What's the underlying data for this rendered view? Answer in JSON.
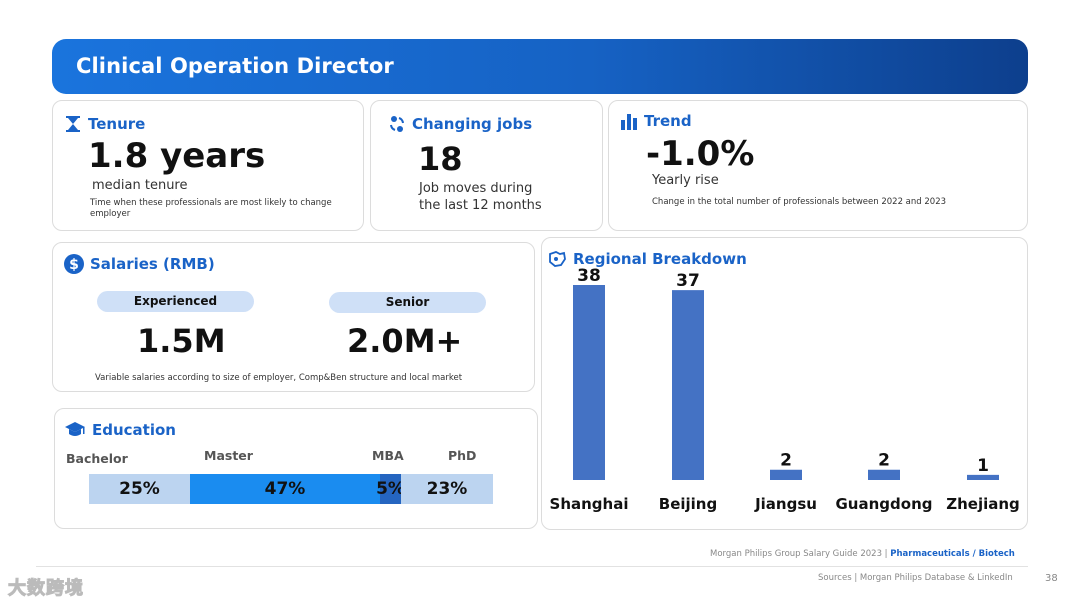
{
  "title": "Clinical Operation Director",
  "tenure": {
    "heading": "Tenure",
    "value": "1.8 years",
    "label": "median tenure",
    "note": "Time when these professionals are most likely to  change employer"
  },
  "changing_jobs": {
    "heading": "Changing jobs",
    "value": "18",
    "label_line1": "Job moves during",
    "label_line2": "the last 12 months"
  },
  "trend": {
    "heading": "Trend",
    "value": "-1.0%",
    "label": "Yearly rise",
    "note": "Change in the total number of professionals between 2022 and 2023"
  },
  "salaries": {
    "heading": "Salaries (RMB)",
    "experienced_label": "Experienced",
    "experienced_value": "1.5M",
    "senior_label": "Senior",
    "senior_value": "2.0M+",
    "note": "Variable salaries according to size of employer, Comp&Ben structure and local market"
  },
  "education": {
    "heading": "Education",
    "labels": [
      "Bachelor",
      "Master",
      "MBA",
      "PhD"
    ],
    "values": [
      "25%",
      "47%",
      "5%",
      "23%"
    ],
    "shares": [
      25,
      47,
      5,
      23
    ],
    "colors": [
      "#bcd4f0",
      "#1a8cf0",
      "#2565c0",
      "#bcd4f0"
    ]
  },
  "chart_data": {
    "type": "bar",
    "title": "Regional Breakdown",
    "categories": [
      "Shanghai",
      "Beijing",
      "Jiangsu",
      "Guangdong",
      "Zhejiang"
    ],
    "values": [
      38,
      37,
      2,
      2,
      1
    ],
    "ylim": [
      0,
      38
    ],
    "bar_color": "#4472c4",
    "xlabel": "",
    "ylabel": ""
  },
  "footer": {
    "guide": "Morgan Philips Group Salary Guide 2023 |",
    "sector": "Pharmaceuticals / Biotech",
    "sources": "Sources | Morgan Philips Database & LinkedIn",
    "page": "38"
  },
  "watermark": "大数跨境"
}
